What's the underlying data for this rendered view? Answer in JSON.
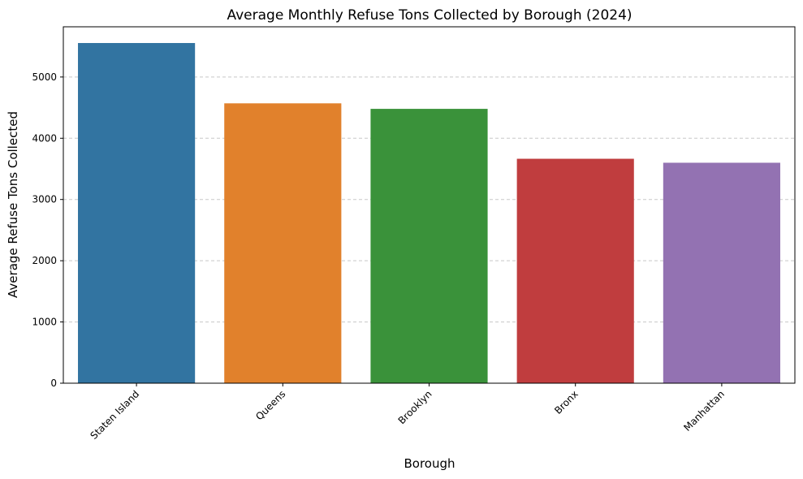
{
  "chart_data": {
    "type": "bar",
    "title": "Average Monthly Refuse Tons Collected by Borough (2024)",
    "xlabel": "Borough",
    "ylabel": "Average Refuse Tons Collected",
    "categories": [
      "Staten Island",
      "Queens",
      "Brooklyn",
      "Bronx",
      "Manhattan"
    ],
    "values": [
      5555,
      4570,
      4480,
      3665,
      3600
    ],
    "colors": [
      "#3274a1",
      "#e1812c",
      "#3a923a",
      "#c03d3e",
      "#9372b2"
    ],
    "ylim": [
      0,
      5820
    ],
    "yticks": [
      0,
      1000,
      2000,
      3000,
      4000,
      5000
    ],
    "grid": "y-dashed",
    "legend": "none"
  }
}
